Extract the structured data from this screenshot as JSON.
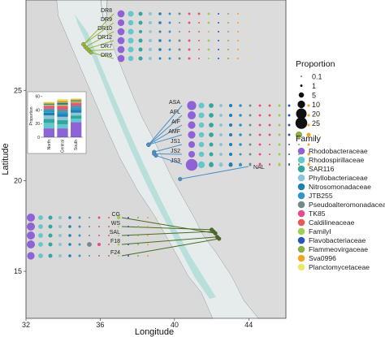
{
  "chart_data": {
    "type": "scatter",
    "xlabel": "Longitude",
    "ylabel": "Latitude",
    "x_ticks": [
      32,
      36,
      40,
      44
    ],
    "y_ticks": [
      15,
      20,
      25
    ],
    "xlim": [
      32,
      46
    ],
    "ylim": [
      12.4,
      30.0
    ],
    "families": [
      "Rhodobacteraceae",
      "Rhodospirillaceae",
      "SAR116",
      "Phyllobacteriaceae",
      "Nitrosomonadaceae",
      "JTB255",
      "Pseudoalteromonadaceae",
      "TK85",
      "Caldilineaceae",
      "FamilyI",
      "Flavobacteriaceae",
      "Flammeovirgaceae",
      "Sva0996",
      "Planctomycetaceae"
    ],
    "family_colors": [
      "#8f63d6",
      "#63c8cc",
      "#34a6a0",
      "#8cc5d6",
      "#1f7fb0",
      "#2f96c8",
      "#6f8a88",
      "#e84a8c",
      "#e85858",
      "#9ccf52",
      "#2a54b8",
      "#8ab04a",
      "#f2a422",
      "#ece866"
    ],
    "size_legend": {
      "title": "Proportion",
      "values": [
        0.1,
        1,
        5,
        10,
        20,
        25
      ]
    },
    "family_legend_title": "Family",
    "sites": [
      {
        "name": "DR8",
        "group": "north",
        "lon": 35.1,
        "lat": 27.55,
        "proportions": [
          9,
          6,
          3,
          2,
          1.5,
          1,
          1,
          1,
          1,
          1,
          0.5,
          0.5,
          0.5,
          0.3
        ]
      },
      {
        "name": "DR9",
        "group": "north",
        "lon": 35.1,
        "lat": 27.55,
        "proportions": [
          8,
          5,
          3,
          2,
          1.5,
          1,
          0.5,
          1,
          0.5,
          1,
          0.5,
          0.5,
          0.5,
          0.3
        ]
      },
      {
        "name": "DR10",
        "group": "north",
        "lon": 35.2,
        "lat": 27.4,
        "proportions": [
          9,
          6,
          2,
          1.5,
          1,
          1,
          0.5,
          0.5,
          0.5,
          0.5,
          0.5,
          0.5,
          0.5,
          0.3
        ]
      },
      {
        "name": "DR12",
        "group": "north",
        "lon": 35.3,
        "lat": 27.3,
        "proportions": [
          9,
          6,
          3,
          2,
          1.5,
          1,
          1,
          1,
          0.5,
          1,
          0.5,
          0.5,
          0.5,
          0.3
        ]
      },
      {
        "name": "DR7",
        "group": "north",
        "lon": 35.4,
        "lat": 27.2,
        "proportions": [
          9,
          6,
          3,
          2,
          1.5,
          1,
          1,
          1,
          0.5,
          1,
          0.5,
          0.5,
          0.5,
          0.3
        ]
      },
      {
        "name": "DR6",
        "group": "north",
        "lon": 35.5,
        "lat": 27.1,
        "proportions": [
          9,
          5,
          3,
          2,
          1,
          1,
          1,
          1,
          0.5,
          0.5,
          0.5,
          0.5,
          0.5,
          0.3
        ]
      },
      {
        "name": "ASA",
        "group": "central",
        "lon": 38.6,
        "lat": 22.0,
        "proportions": [
          15,
          6,
          4,
          2,
          2,
          1.5,
          1,
          1,
          1,
          1,
          1,
          1,
          1,
          0.5
        ]
      },
      {
        "name": "AFL",
        "group": "central",
        "lon": 38.6,
        "lat": 22.0,
        "proportions": [
          12,
          6,
          4,
          2,
          2,
          1.5,
          1,
          1,
          1,
          1,
          1,
          1,
          1,
          0.5
        ]
      },
      {
        "name": "AIF",
        "group": "central",
        "lon": 38.6,
        "lat": 22.0,
        "proportions": [
          10,
          5,
          4,
          2,
          2,
          1.5,
          1,
          1,
          1,
          1,
          1,
          1,
          1,
          0.5
        ]
      },
      {
        "name": "AMF",
        "group": "central",
        "lon": 38.6,
        "lat": 22.0,
        "proportions": [
          10,
          5,
          4,
          2,
          2,
          1.5,
          1,
          1,
          1,
          1,
          1,
          8,
          3,
          0.5
        ]
      },
      {
        "name": "JS1",
        "group": "central",
        "lon": 38.9,
        "lat": 21.6,
        "proportions": [
          8,
          5,
          3,
          2,
          2,
          1.5,
          1,
          1,
          0.5,
          1,
          0.5,
          0.5,
          1,
          0.3
        ]
      },
      {
        "name": "JS2",
        "group": "central",
        "lon": 38.9,
        "lat": 21.5,
        "proportions": [
          8,
          5,
          3,
          2,
          2,
          1,
          1,
          1,
          0.5,
          1,
          0.5,
          0.5,
          1,
          0.3
        ]
      },
      {
        "name": "JS3",
        "group": "central",
        "lon": 39.0,
        "lat": 21.4,
        "proportions": [
          8,
          5,
          3,
          2,
          2,
          1,
          1,
          1,
          0.5,
          1,
          0.5,
          0.5,
          1,
          0.3
        ]
      },
      {
        "name": "NAL",
        "group": "central",
        "lon": 40.3,
        "lat": 20.1,
        "proportions": [
          25,
          8,
          4,
          3,
          3,
          2,
          1,
          1,
          0.5,
          1,
          0.5,
          0.5,
          1,
          0.3
        ]
      },
      {
        "name": "WS",
        "group": "south",
        "lon": 42.0,
        "lat": 17.3,
        "proportions": [
          12,
          4,
          3,
          2,
          1.5,
          1,
          0.5,
          0.5,
          0.5,
          0.5,
          0.5,
          0.5,
          0.5,
          0.1
        ]
      },
      {
        "name": "SAL",
        "group": "south",
        "lon": 42.1,
        "lat": 17.2,
        "proportions": [
          12,
          4,
          3,
          2,
          1.5,
          1,
          0.5,
          0.5,
          0.5,
          0.5,
          0.5,
          0.5,
          0.5,
          0.1
        ]
      },
      {
        "name": "CG",
        "group": "south",
        "lon": 42.2,
        "lat": 17.1,
        "proportions": [
          12,
          4,
          3,
          2,
          1.5,
          1,
          0.5,
          1,
          0.5,
          2,
          0.5,
          0.5,
          0.5,
          0.1
        ]
      },
      {
        "name": "F18",
        "group": "south",
        "lon": 42.3,
        "lat": 16.9,
        "proportions": [
          12,
          4,
          3,
          2,
          1.5,
          1,
          4,
          2,
          0.5,
          1,
          0.5,
          0.5,
          0.5,
          0.1
        ]
      },
      {
        "name": "F24",
        "group": "south",
        "lon": 42.4,
        "lat": 16.8,
        "proportions": [
          10,
          4,
          3,
          2,
          1.5,
          1,
          0.5,
          0.5,
          0.5,
          0.5,
          0.5,
          0.5,
          0.5,
          0.1
        ]
      }
    ],
    "inset": {
      "type": "bar",
      "stacked": true,
      "ylabel": "Proportion",
      "y_ticks": [
        0,
        20,
        40,
        60
      ],
      "ylim": [
        0,
        62
      ],
      "categories": [
        "North",
        "Central",
        "South"
      ],
      "series": [
        {
          "family": "Rhodobacteraceae",
          "values": [
            13,
            13,
            22
          ]
        },
        {
          "family": "Rhodospirillaceae",
          "values": [
            8,
            6,
            5
          ]
        },
        {
          "family": "SAR116",
          "values": [
            6,
            6,
            5
          ]
        },
        {
          "family": "Phyllobacteriaceae",
          "values": [
            5,
            5,
            4
          ]
        },
        {
          "family": "Nitrosomonadaceae",
          "values": [
            4,
            4,
            4
          ]
        },
        {
          "family": "JTB255",
          "values": [
            4,
            4,
            4
          ]
        },
        {
          "family": "Pseudoalteromonadaceae",
          "values": [
            2,
            3,
            3
          ]
        },
        {
          "family": "TK85",
          "values": [
            2,
            2,
            2
          ]
        },
        {
          "family": "Caldilineaceae",
          "values": [
            2,
            3,
            2
          ]
        },
        {
          "family": "FamilyI",
          "values": [
            2,
            2,
            2
          ]
        },
        {
          "family": "Flavobacteriaceae",
          "values": [
            1,
            2,
            1
          ]
        },
        {
          "family": "Flammeovirgaceae",
          "values": [
            1,
            2,
            1
          ]
        },
        {
          "family": "Sva0996",
          "values": [
            1,
            2,
            1
          ]
        },
        {
          "family": "Planctomycetaceae",
          "values": [
            1,
            2,
            1
          ]
        }
      ]
    }
  }
}
